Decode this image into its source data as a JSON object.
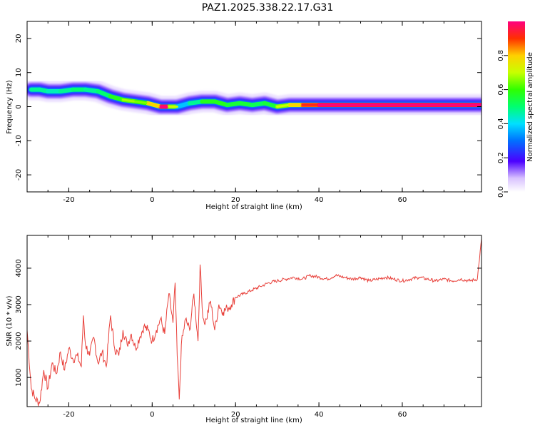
{
  "title": "PAZ1.2025.338.22.17.G31",
  "chart_data": [
    {
      "type": "heatmap",
      "xlabel": "Height of straight line (km)",
      "ylabel": "Frequency (Hz)",
      "xlim": [
        -30,
        79
      ],
      "ylim": [
        -25,
        25
      ],
      "xticks": [
        -20,
        0,
        20,
        40,
        60
      ],
      "yticks": [
        -20,
        -10,
        0,
        10,
        20
      ],
      "ridge": {
        "x": [
          -29,
          -27,
          -25,
          -22,
          -19,
          -16,
          -13,
          -10,
          -7,
          -4,
          -1,
          2,
          4,
          6,
          9,
          12,
          15,
          18,
          21,
          24,
          27,
          30,
          33,
          36,
          40,
          79
        ],
        "freq": [
          5,
          5,
          4.5,
          4.5,
          5,
          5,
          4.5,
          3,
          2,
          1.5,
          1,
          0,
          0,
          0,
          1,
          1.5,
          1.5,
          0.5,
          1,
          0.5,
          1,
          0,
          0.5,
          0.5,
          0.5,
          0.5
        ],
        "amp": [
          0.45,
          0.5,
          0.45,
          0.45,
          0.5,
          0.5,
          0.45,
          0.55,
          0.6,
          0.65,
          0.55,
          0.95,
          0.95,
          0.35,
          0.4,
          0.55,
          0.6,
          0.55,
          0.55,
          0.55,
          0.5,
          0.6,
          0.7,
          0.8,
          0.95,
          0.95
        ]
      },
      "colorbar": {
        "label": "Normalized spectral amplitude",
        "range": [
          0,
          1
        ],
        "ticks": [
          "0.0",
          "0.2",
          "0.4",
          "0.6",
          "0.8"
        ]
      }
    },
    {
      "type": "line",
      "xlabel": "Height of straight line (km)",
      "ylabel": "SNR (10 * v/v)",
      "xlim": [
        -30,
        79
      ],
      "ylim": [
        200,
        4900
      ],
      "xticks": [
        -20,
        0,
        20,
        40,
        60
      ],
      "yticks": [
        1000,
        2000,
        3000,
        4000
      ],
      "series": [
        {
          "name": "SNR",
          "color": "#e8403a",
          "x": [
            -30,
            -29,
            -28,
            -27,
            -26,
            -25,
            -24,
            -23,
            -22,
            -21,
            -20,
            -19,
            -18,
            -17,
            -16.5,
            -16,
            -15,
            -14,
            -13,
            -12,
            -11,
            -10,
            -9,
            -8,
            -7,
            -6,
            -5,
            -4,
            -3,
            -2,
            -1,
            0,
            1,
            2,
            3,
            4,
            5,
            5.5,
            6,
            6.5,
            7,
            8,
            9,
            10,
            11,
            11.5,
            12,
            12.5,
            13,
            14,
            15,
            16,
            17,
            18,
            19,
            20,
            22,
            24,
            26,
            28,
            30,
            32,
            34,
            36,
            38,
            40,
            42,
            44,
            46,
            48,
            50,
            52,
            54,
            56,
            58,
            60,
            62,
            64,
            66,
            68,
            70,
            72,
            74,
            76,
            78,
            79
          ],
          "y": [
            2300,
            700,
            400,
            300,
            1200,
            700,
            1400,
            1100,
            1700,
            1200,
            1800,
            1500,
            1600,
            1300,
            2700,
            1900,
            1600,
            2100,
            1400,
            1700,
            1300,
            2700,
            1800,
            1600,
            2300,
            1900,
            2200,
            1800,
            2100,
            2400,
            2300,
            2000,
            2300,
            2600,
            2200,
            3300,
            2500,
            3600,
            1600,
            400,
            1900,
            2600,
            2300,
            3300,
            2000,
            4100,
            2900,
            2500,
            2600,
            3100,
            2300,
            3000,
            2800,
            2900,
            3000,
            3200,
            3300,
            3400,
            3500,
            3600,
            3650,
            3700,
            3750,
            3700,
            3800,
            3750,
            3700,
            3800,
            3750,
            3700,
            3750,
            3650,
            3700,
            3750,
            3700,
            3650,
            3700,
            3750,
            3700,
            3650,
            3700,
            3650,
            3700,
            3650,
            3700,
            4800
          ]
        }
      ]
    }
  ]
}
